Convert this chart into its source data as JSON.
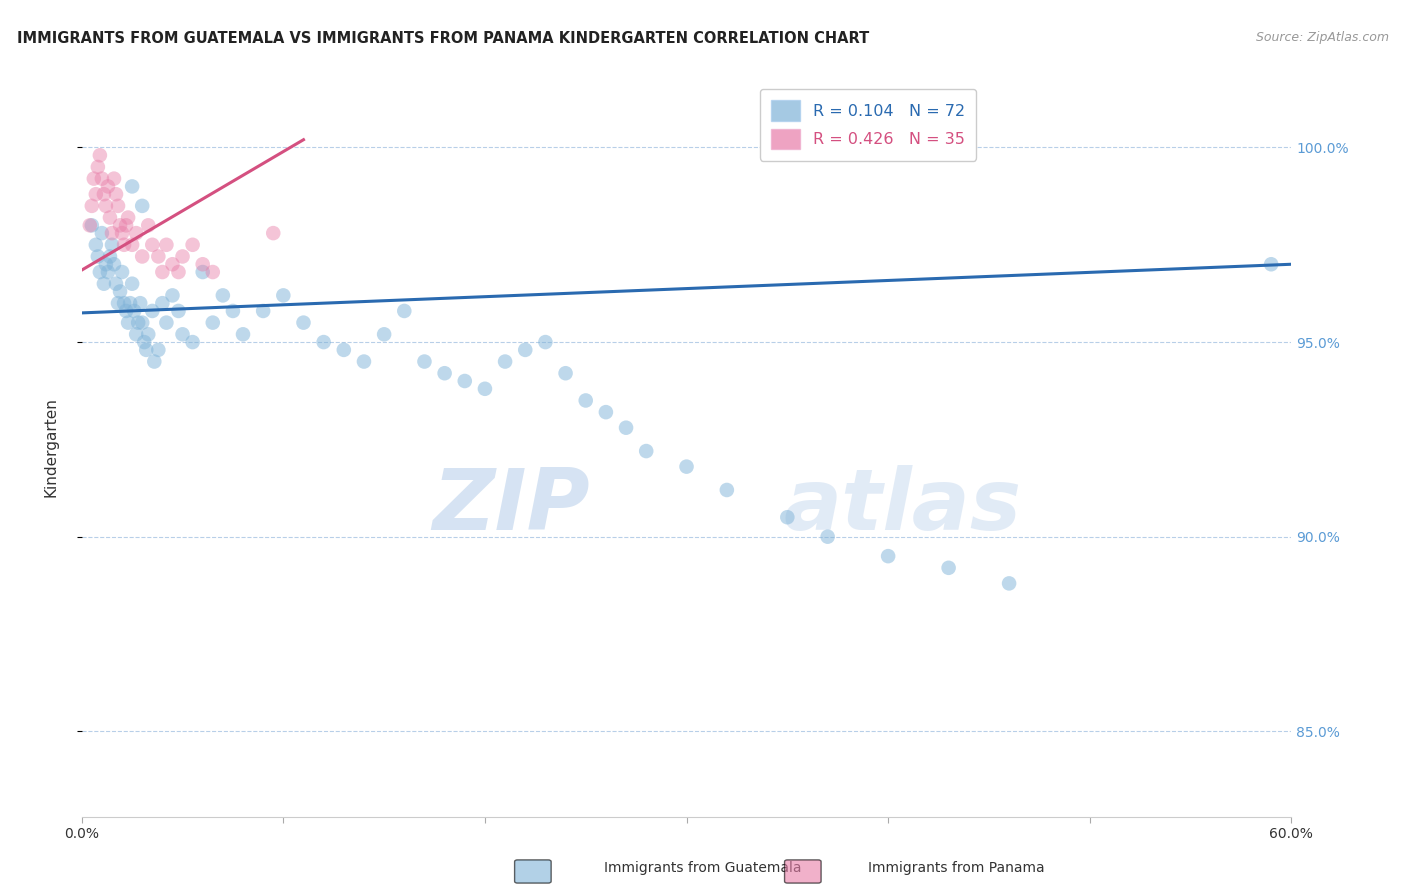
{
  "title": "IMMIGRANTS FROM GUATEMALA VS IMMIGRANTS FROM PANAMA KINDERGARTEN CORRELATION CHART",
  "source": "Source: ZipAtlas.com",
  "ylabel": "Kindergarten",
  "x_min": 0.0,
  "x_max": 0.6,
  "y_min": 0.828,
  "y_max": 1.018,
  "y_ticks": [
    0.85,
    0.9,
    0.95,
    1.0
  ],
  "y_tick_labels": [
    "85.0%",
    "90.0%",
    "95.0%",
    "100.0%"
  ],
  "blue_scatter_x": [
    0.005,
    0.007,
    0.008,
    0.009,
    0.01,
    0.011,
    0.012,
    0.013,
    0.014,
    0.015,
    0.016,
    0.017,
    0.018,
    0.019,
    0.02,
    0.021,
    0.022,
    0.023,
    0.024,
    0.025,
    0.026,
    0.027,
    0.028,
    0.029,
    0.03,
    0.031,
    0.032,
    0.033,
    0.035,
    0.036,
    0.038,
    0.04,
    0.042,
    0.045,
    0.048,
    0.05,
    0.055,
    0.06,
    0.065,
    0.07,
    0.075,
    0.08,
    0.09,
    0.1,
    0.11,
    0.12,
    0.13,
    0.14,
    0.15,
    0.16,
    0.17,
    0.18,
    0.19,
    0.2,
    0.21,
    0.22,
    0.23,
    0.24,
    0.25,
    0.26,
    0.27,
    0.28,
    0.3,
    0.32,
    0.35,
    0.37,
    0.4,
    0.43,
    0.46,
    0.59,
    0.025,
    0.03
  ],
  "blue_scatter_y": [
    0.98,
    0.975,
    0.972,
    0.968,
    0.978,
    0.965,
    0.97,
    0.968,
    0.972,
    0.975,
    0.97,
    0.965,
    0.96,
    0.963,
    0.968,
    0.96,
    0.958,
    0.955,
    0.96,
    0.965,
    0.958,
    0.952,
    0.955,
    0.96,
    0.955,
    0.95,
    0.948,
    0.952,
    0.958,
    0.945,
    0.948,
    0.96,
    0.955,
    0.962,
    0.958,
    0.952,
    0.95,
    0.968,
    0.955,
    0.962,
    0.958,
    0.952,
    0.958,
    0.962,
    0.955,
    0.95,
    0.948,
    0.945,
    0.952,
    0.958,
    0.945,
    0.942,
    0.94,
    0.938,
    0.945,
    0.948,
    0.95,
    0.942,
    0.935,
    0.932,
    0.928,
    0.922,
    0.918,
    0.912,
    0.905,
    0.9,
    0.895,
    0.892,
    0.888,
    0.97,
    0.99,
    0.985
  ],
  "pink_scatter_x": [
    0.004,
    0.005,
    0.006,
    0.007,
    0.008,
    0.009,
    0.01,
    0.011,
    0.012,
    0.013,
    0.014,
    0.015,
    0.016,
    0.017,
    0.018,
    0.019,
    0.02,
    0.021,
    0.022,
    0.023,
    0.025,
    0.027,
    0.03,
    0.033,
    0.035,
    0.038,
    0.04,
    0.042,
    0.045,
    0.048,
    0.05,
    0.055,
    0.06,
    0.065,
    0.095
  ],
  "pink_scatter_y": [
    0.98,
    0.985,
    0.992,
    0.988,
    0.995,
    0.998,
    0.992,
    0.988,
    0.985,
    0.99,
    0.982,
    0.978,
    0.992,
    0.988,
    0.985,
    0.98,
    0.978,
    0.975,
    0.98,
    0.982,
    0.975,
    0.978,
    0.972,
    0.98,
    0.975,
    0.972,
    0.968,
    0.975,
    0.97,
    0.968,
    0.972,
    0.975,
    0.97,
    0.968,
    0.978
  ],
  "blue_line_x": [
    0.0,
    0.6
  ],
  "blue_line_y": [
    0.9575,
    0.97
  ],
  "pink_line_x": [
    0.0,
    0.11
  ],
  "pink_line_y": [
    0.9685,
    1.002
  ],
  "blue_color": "#7fb3d8",
  "pink_color": "#e87da8",
  "blue_line_color": "#2a6ab0",
  "pink_line_color": "#d45080",
  "legend_blue_label": "R = 0.104   N = 72",
  "legend_pink_label": "R = 0.426   N = 35",
  "watermark_zip": "ZIP",
  "watermark_atlas": "atlas",
  "background_color": "#ffffff",
  "grid_color": "#b8cfe8",
  "title_color": "#222222",
  "axis_label_color": "#333333",
  "right_tick_label_color": "#5b9bd5",
  "bottom_legend_blue": "Immigrants from Guatemala",
  "bottom_legend_pink": "Immigrants from Panama"
}
